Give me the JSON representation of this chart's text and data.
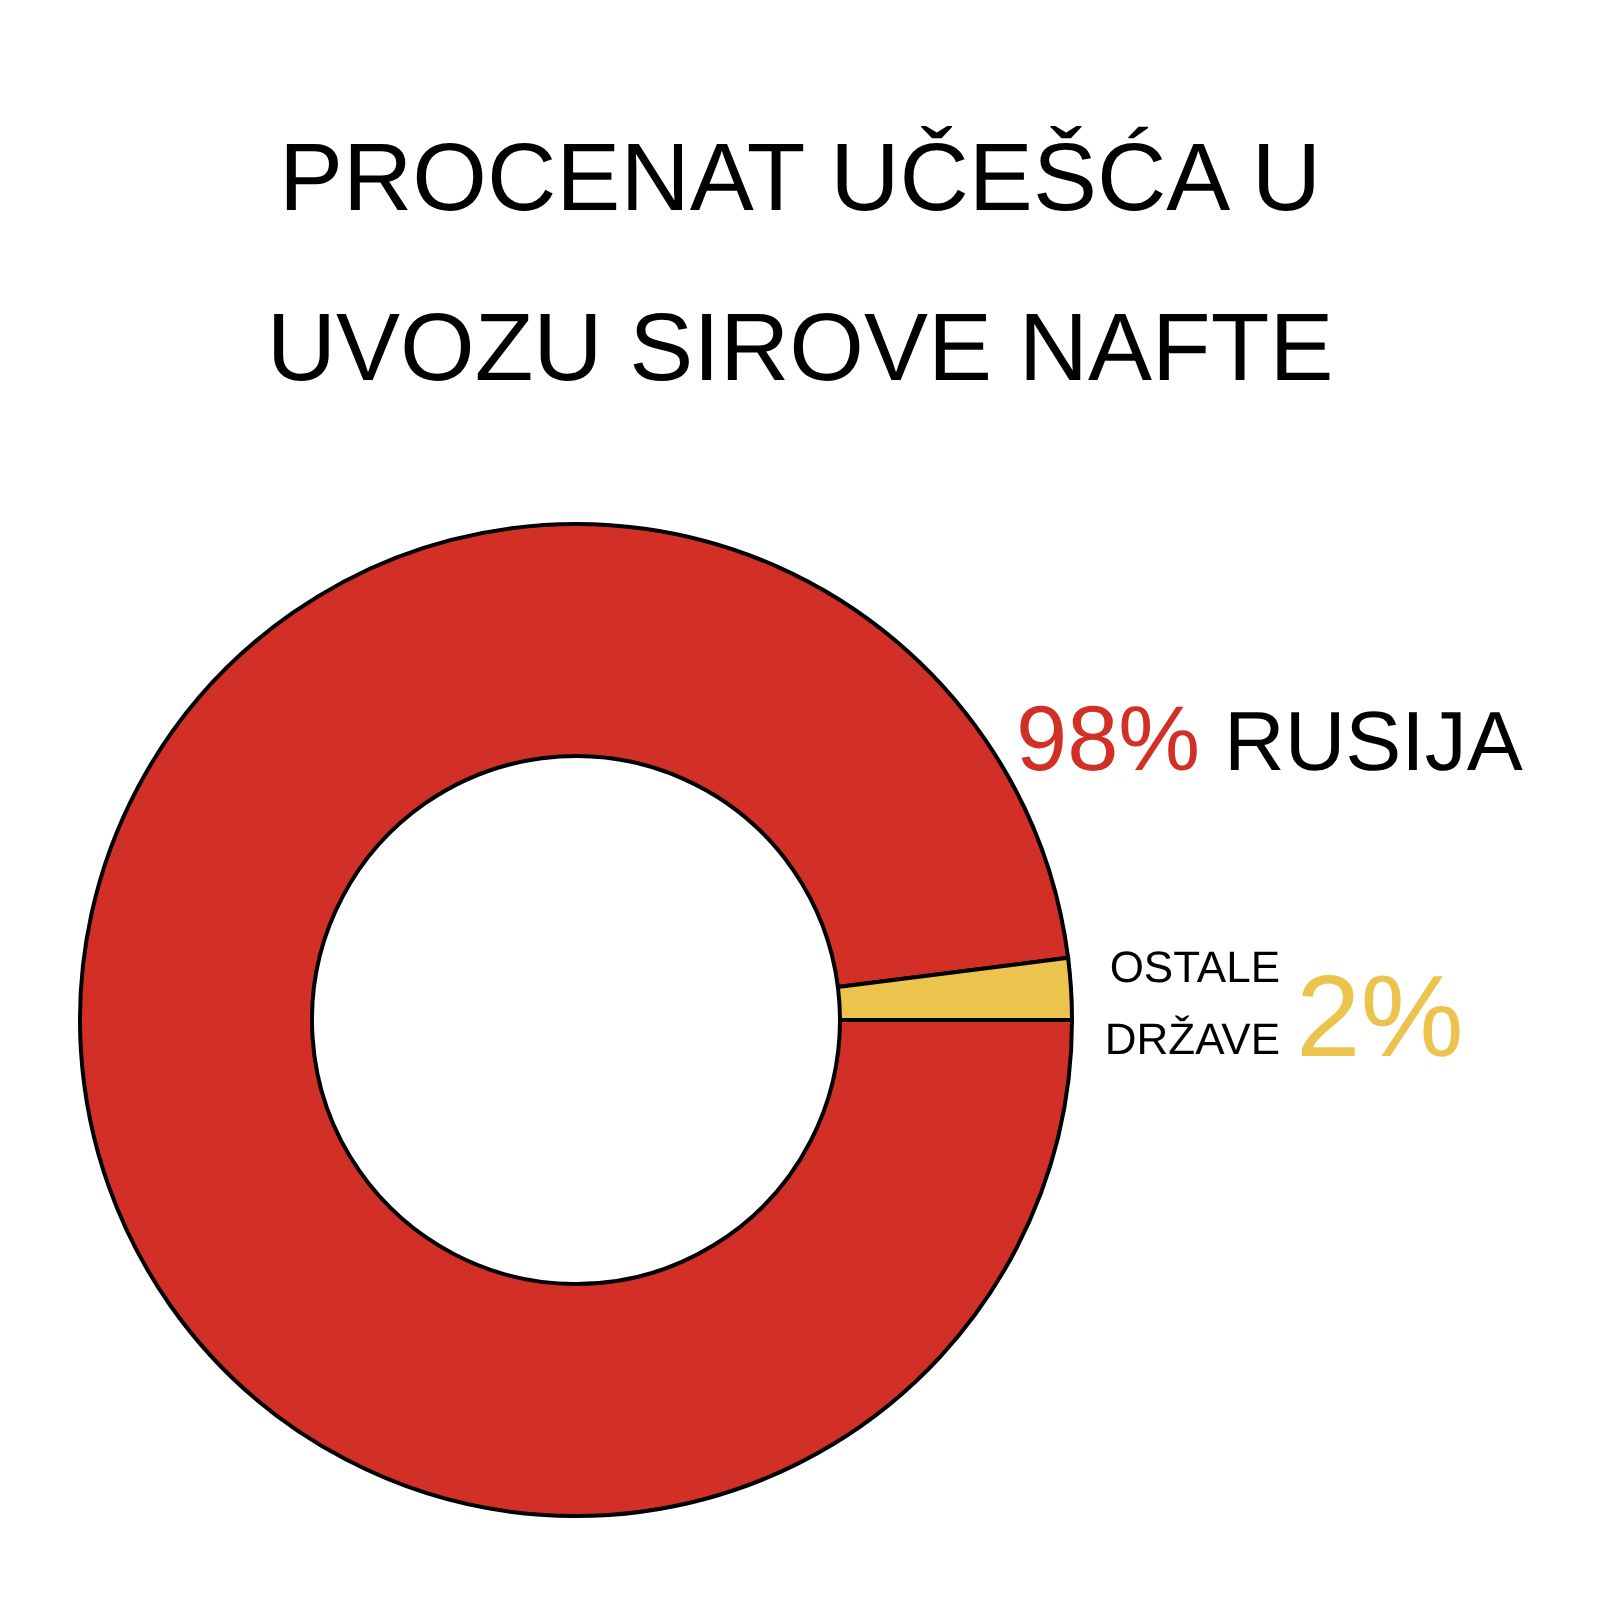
{
  "chart_data": {
    "type": "donut",
    "title": "PROCENAT UČEŠĆA U UVOZU SIROVE NAFTE",
    "categories": [
      "RUSIJA",
      "OSTALE DRŽAVE"
    ],
    "values": [
      98,
      2
    ],
    "colors": [
      "#d22f27",
      "#ecc44d"
    ],
    "value_labels": [
      "98%",
      "2%"
    ]
  }
}
